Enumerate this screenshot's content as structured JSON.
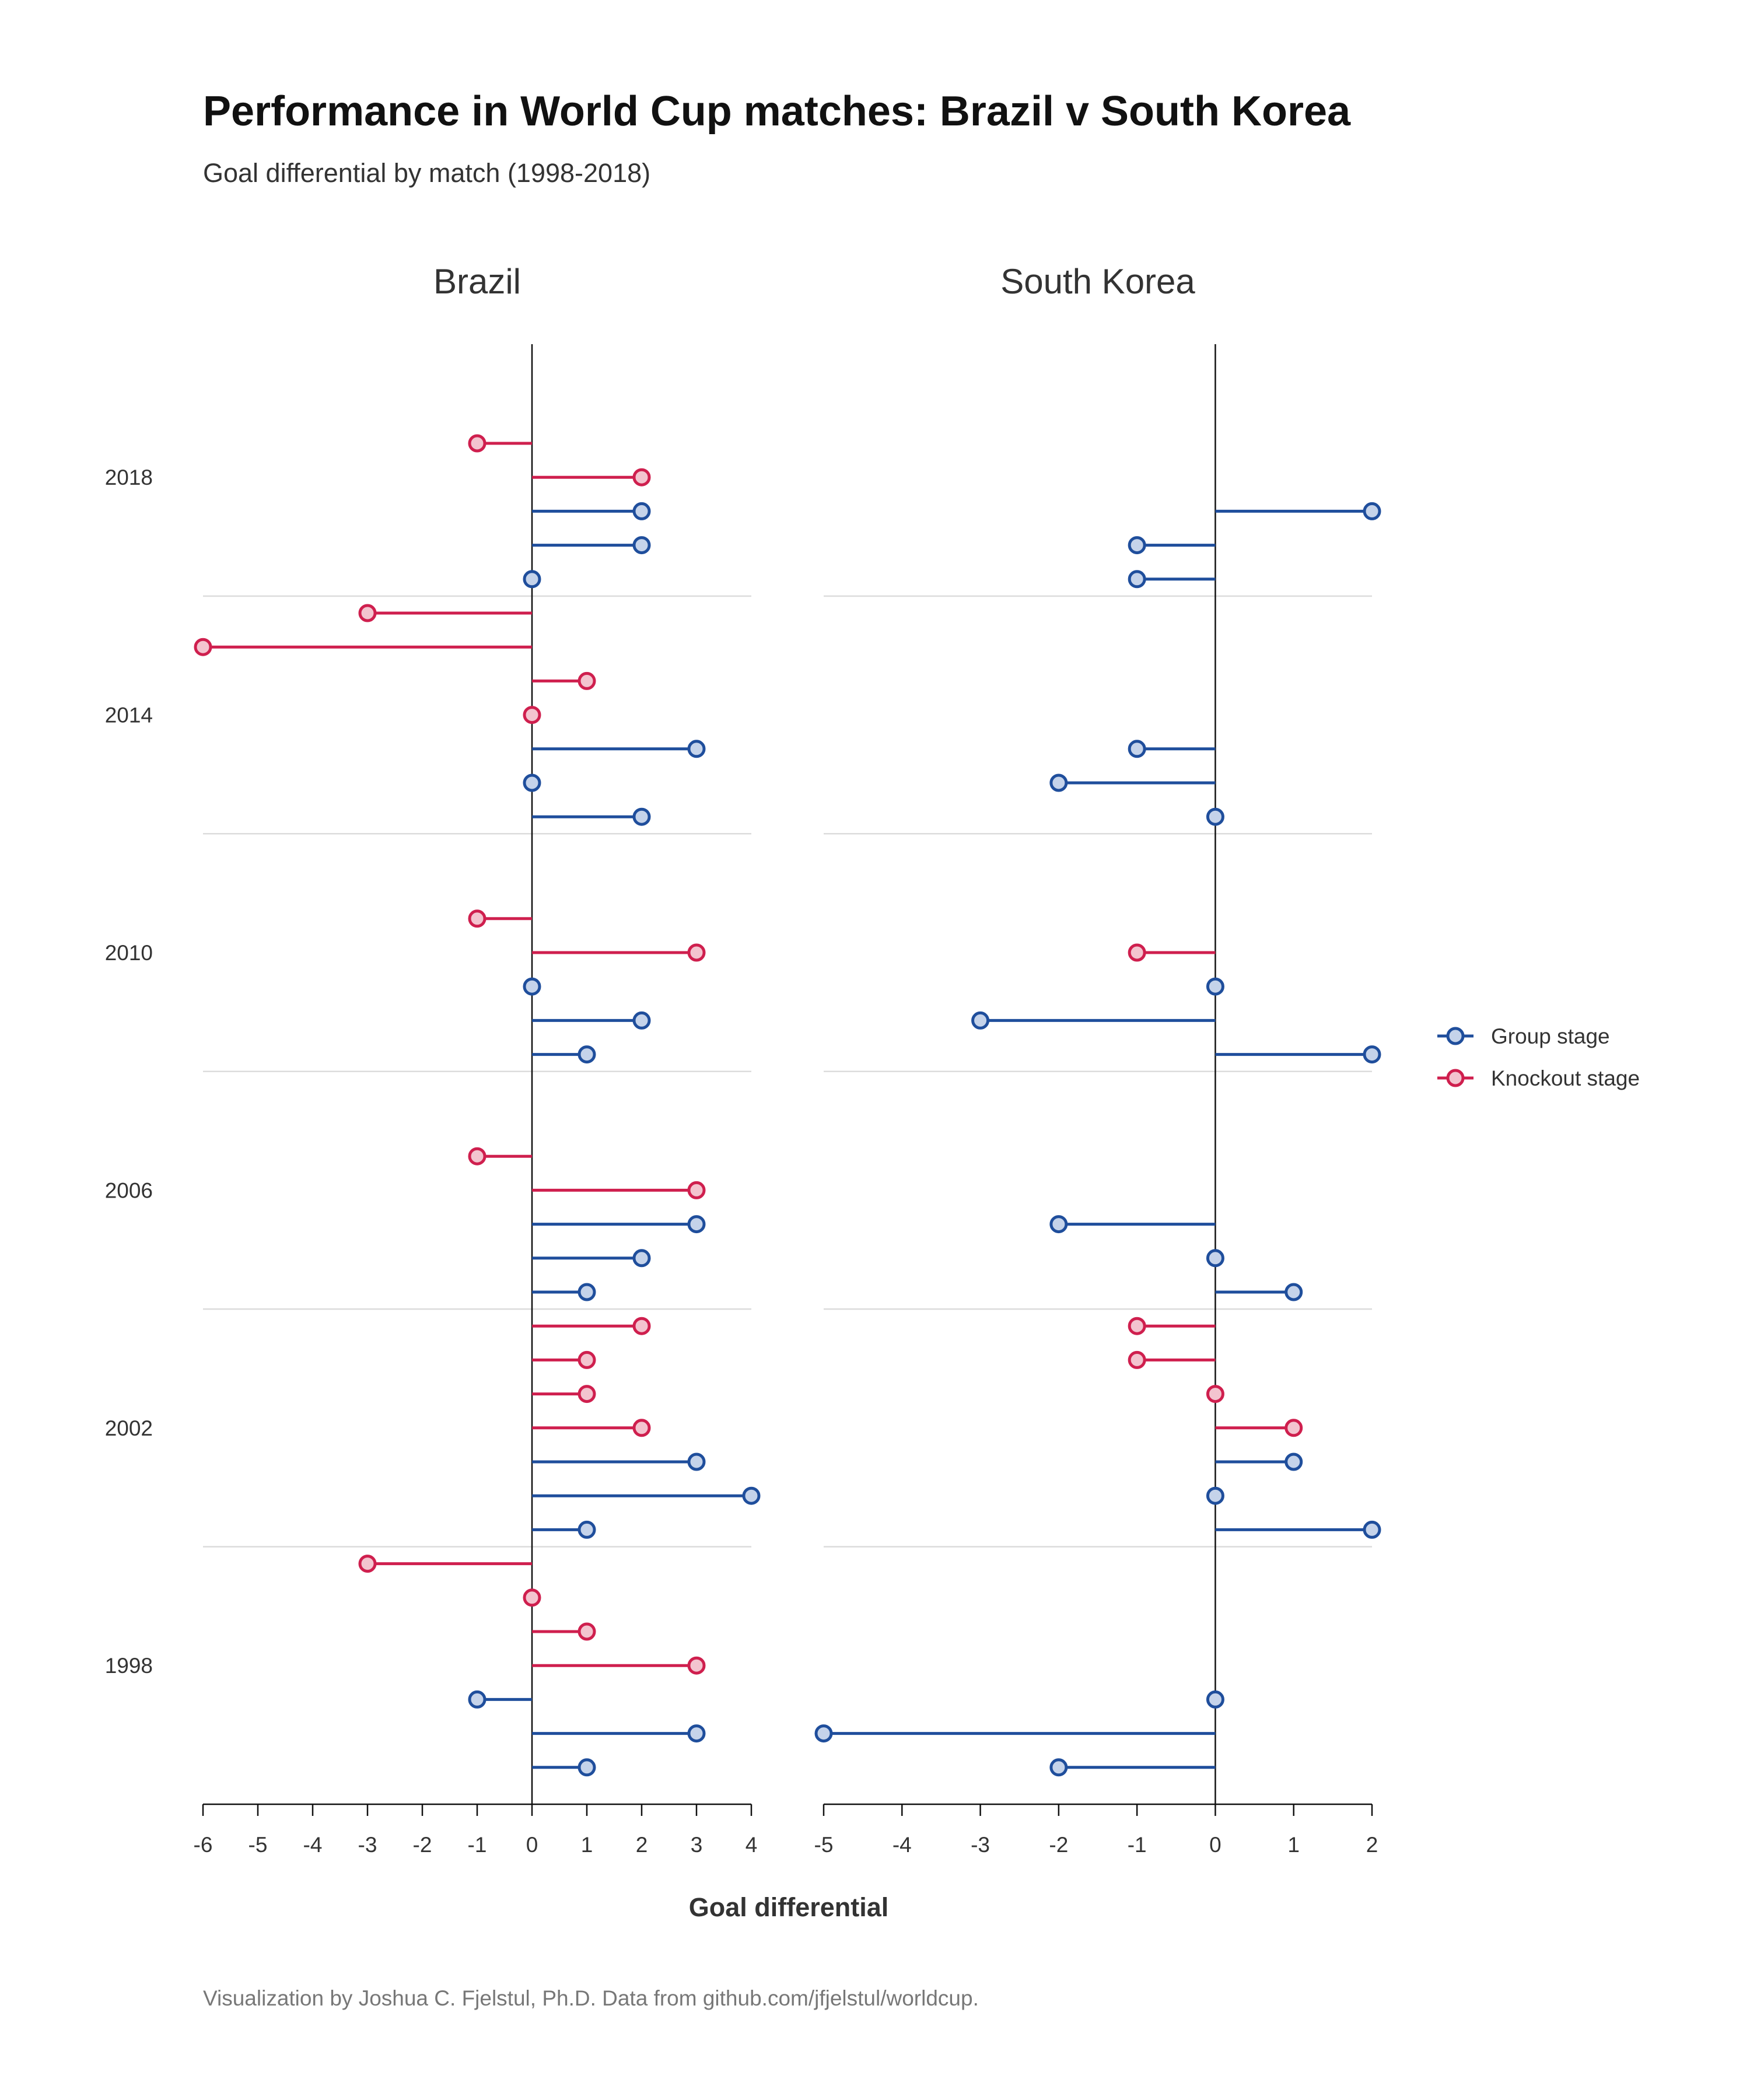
{
  "colors": {
    "group": "#1f4e9c",
    "group_fill": "#c5d3ea",
    "knockout": "#cf1f4e",
    "knockout_fill": "#f3c4cf",
    "axis": "#111111",
    "grid": "#dcdcdc"
  },
  "chart_data": {
    "type": "lollipop",
    "title": "Performance in World Cup matches: Brazil v South Korea",
    "subtitle": "Goal differential by match (1998-2018)",
    "xlabel": "Goal differential",
    "caption": "Visualization by Joshua C. Fjelstul, Ph.D. Data from github.com/jfjelstul/worldcup.",
    "legend": {
      "position": "right",
      "items": [
        {
          "key": "group",
          "label": "Group stage"
        },
        {
          "key": "knockout",
          "label": "Knockout stage"
        }
      ]
    },
    "years": [
      "2018",
      "2014",
      "2010",
      "2006",
      "2002",
      "1998"
    ],
    "n_rows": 40,
    "year_rows": [
      {
        "year": "2018",
        "row": 2
      },
      {
        "year": "2014",
        "row": 9
      },
      {
        "year": "2010",
        "row": 16
      },
      {
        "year": "2006",
        "row": 23
      },
      {
        "year": "2002",
        "row": 30
      },
      {
        "year": "1998",
        "row": 37
      }
    ],
    "separator_rows": [
      5.5,
      12.5,
      19.5,
      26.5,
      33.5
    ],
    "panels": [
      {
        "name": "Brazil",
        "xlim": [
          -6,
          4
        ],
        "ticks": [
          -6,
          -5,
          -4,
          -3,
          -2,
          -1,
          0,
          1,
          2,
          3,
          4
        ],
        "matches": [
          {
            "year": "2018",
            "row": 1,
            "stage": "knockout",
            "value": -1
          },
          {
            "year": "2018",
            "row": 2,
            "stage": "knockout",
            "value": 2
          },
          {
            "year": "2018",
            "row": 3,
            "stage": "group",
            "value": 2
          },
          {
            "year": "2018",
            "row": 4,
            "stage": "group",
            "value": 2
          },
          {
            "year": "2018",
            "row": 5,
            "stage": "group",
            "value": 0
          },
          {
            "year": "2014",
            "row": 6,
            "stage": "knockout",
            "value": -3
          },
          {
            "year": "2014",
            "row": 7,
            "stage": "knockout",
            "value": -6
          },
          {
            "year": "2014",
            "row": 8,
            "stage": "knockout",
            "value": 1
          },
          {
            "year": "2014",
            "row": 9,
            "stage": "knockout",
            "value": 0
          },
          {
            "year": "2014",
            "row": 10,
            "stage": "group",
            "value": 3
          },
          {
            "year": "2014",
            "row": 11,
            "stage": "group",
            "value": 0
          },
          {
            "year": "2014",
            "row": 12,
            "stage": "group",
            "value": 2
          },
          {
            "year": "2010",
            "row": 15,
            "stage": "knockout",
            "value": -1
          },
          {
            "year": "2010",
            "row": 16,
            "stage": "knockout",
            "value": 3
          },
          {
            "year": "2010",
            "row": 17,
            "stage": "group",
            "value": 0
          },
          {
            "year": "2010",
            "row": 18,
            "stage": "group",
            "value": 2
          },
          {
            "year": "2010",
            "row": 19,
            "stage": "group",
            "value": 1
          },
          {
            "year": "2006",
            "row": 22,
            "stage": "knockout",
            "value": -1
          },
          {
            "year": "2006",
            "row": 23,
            "stage": "knockout",
            "value": 3
          },
          {
            "year": "2006",
            "row": 24,
            "stage": "group",
            "value": 3
          },
          {
            "year": "2006",
            "row": 25,
            "stage": "group",
            "value": 2
          },
          {
            "year": "2006",
            "row": 26,
            "stage": "group",
            "value": 1
          },
          {
            "year": "2002",
            "row": 27,
            "stage": "knockout",
            "value": 2
          },
          {
            "year": "2002",
            "row": 28,
            "stage": "knockout",
            "value": 1
          },
          {
            "year": "2002",
            "row": 29,
            "stage": "knockout",
            "value": 1
          },
          {
            "year": "2002",
            "row": 30,
            "stage": "knockout",
            "value": 2
          },
          {
            "year": "2002",
            "row": 31,
            "stage": "group",
            "value": 3
          },
          {
            "year": "2002",
            "row": 32,
            "stage": "group",
            "value": 4
          },
          {
            "year": "2002",
            "row": 33,
            "stage": "group",
            "value": 1
          },
          {
            "year": "1998",
            "row": 34,
            "stage": "knockout",
            "value": -3
          },
          {
            "year": "1998",
            "row": 35,
            "stage": "knockout",
            "value": 0
          },
          {
            "year": "1998",
            "row": 36,
            "stage": "knockout",
            "value": 1
          },
          {
            "year": "1998",
            "row": 37,
            "stage": "knockout",
            "value": 3
          },
          {
            "year": "1998",
            "row": 38,
            "stage": "group",
            "value": -1
          },
          {
            "year": "1998",
            "row": 39,
            "stage": "group",
            "value": 3
          },
          {
            "year": "1998",
            "row": 40,
            "stage": "group",
            "value": 1
          }
        ]
      },
      {
        "name": "South Korea",
        "xlim": [
          -5,
          2
        ],
        "ticks": [
          -5,
          -4,
          -3,
          -2,
          -1,
          0,
          1,
          2
        ],
        "matches": [
          {
            "year": "2018",
            "row": 3,
            "stage": "group",
            "value": 2
          },
          {
            "year": "2018",
            "row": 4,
            "stage": "group",
            "value": -1
          },
          {
            "year": "2018",
            "row": 5,
            "stage": "group",
            "value": -1
          },
          {
            "year": "2014",
            "row": 10,
            "stage": "group",
            "value": -1
          },
          {
            "year": "2014",
            "row": 11,
            "stage": "group",
            "value": -2
          },
          {
            "year": "2014",
            "row": 12,
            "stage": "group",
            "value": 0
          },
          {
            "year": "2010",
            "row": 16,
            "stage": "knockout",
            "value": -1
          },
          {
            "year": "2010",
            "row": 17,
            "stage": "group",
            "value": 0
          },
          {
            "year": "2010",
            "row": 18,
            "stage": "group",
            "value": -3
          },
          {
            "year": "2010",
            "row": 19,
            "stage": "group",
            "value": 2
          },
          {
            "year": "2006",
            "row": 24,
            "stage": "group",
            "value": -2
          },
          {
            "year": "2006",
            "row": 25,
            "stage": "group",
            "value": 0
          },
          {
            "year": "2006",
            "row": 26,
            "stage": "group",
            "value": 1
          },
          {
            "year": "2002",
            "row": 27,
            "stage": "knockout",
            "value": -1
          },
          {
            "year": "2002",
            "row": 28,
            "stage": "knockout",
            "value": -1
          },
          {
            "year": "2002",
            "row": 29,
            "stage": "knockout",
            "value": 0
          },
          {
            "year": "2002",
            "row": 30,
            "stage": "knockout",
            "value": 1
          },
          {
            "year": "2002",
            "row": 31,
            "stage": "group",
            "value": 1
          },
          {
            "year": "2002",
            "row": 32,
            "stage": "group",
            "value": 0
          },
          {
            "year": "2002",
            "row": 33,
            "stage": "group",
            "value": 2
          },
          {
            "year": "1998",
            "row": 38,
            "stage": "group",
            "value": 0
          },
          {
            "year": "1998",
            "row": 39,
            "stage": "group",
            "value": -5
          },
          {
            "year": "1998",
            "row": 40,
            "stage": "group",
            "value": -2
          }
        ]
      }
    ]
  }
}
